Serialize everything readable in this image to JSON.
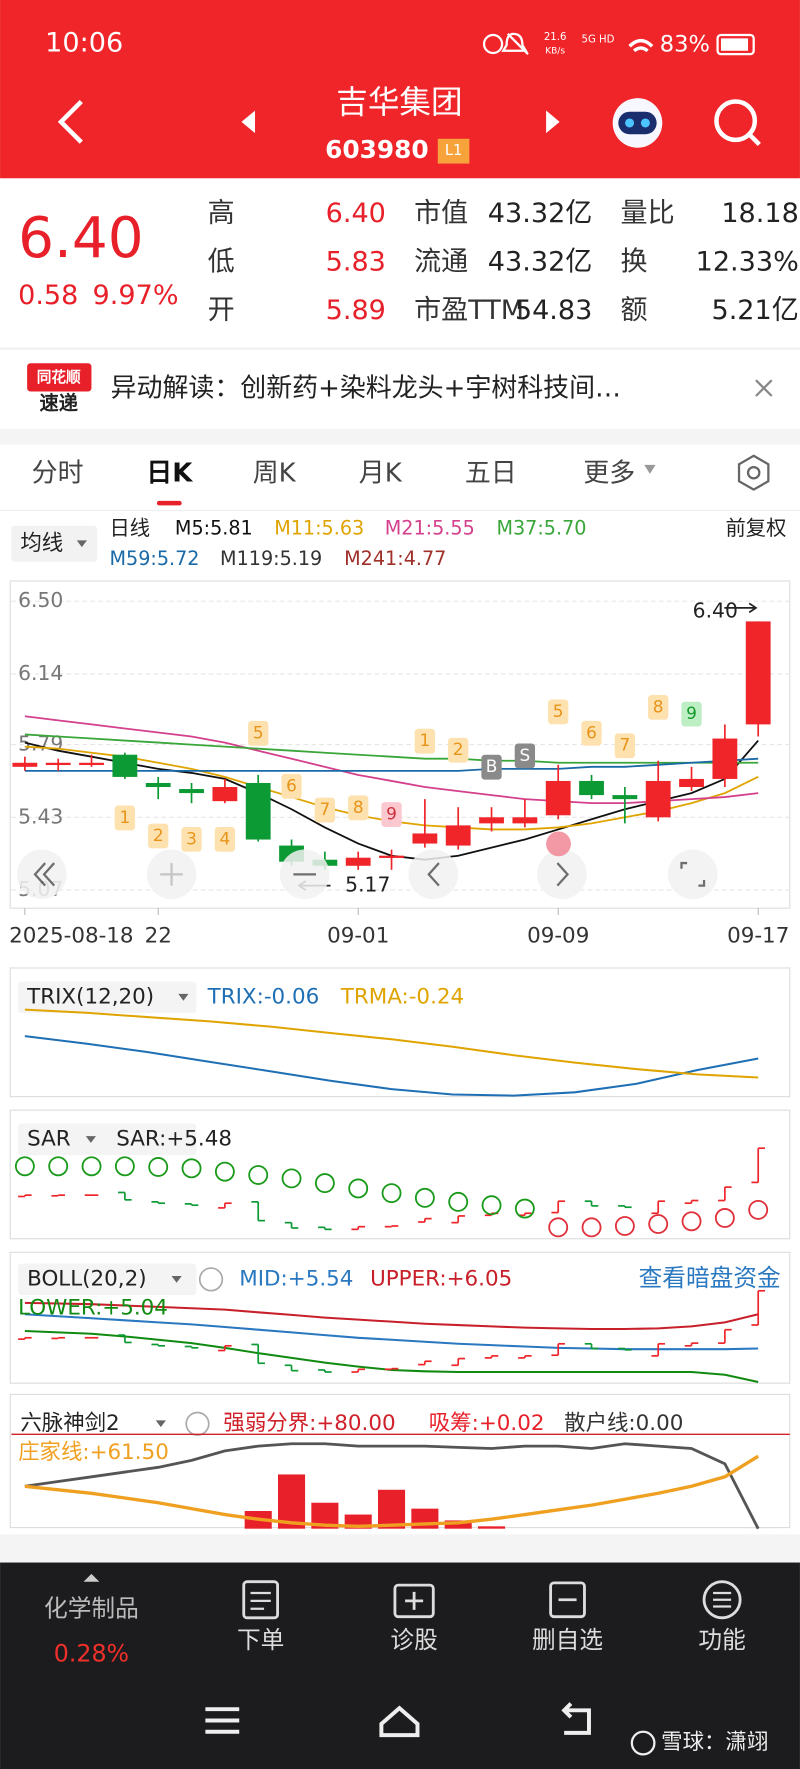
{
  "status_bar": {
    "time": "10:06",
    "net_speed": "21.6",
    "net_unit": "KB/s",
    "signal": "5G HD",
    "battery": "83%"
  },
  "header": {
    "title": "吉华集团",
    "code": "603980",
    "level": "L1"
  },
  "quote": {
    "price": "6.40",
    "change": "0.58",
    "change_pct": "9.97%",
    "fields": [
      {
        "label": "高",
        "value": "6.40"
      },
      {
        "label": "低",
        "value": "5.83"
      },
      {
        "label": "开",
        "value": "5.89"
      },
      {
        "label": "市值",
        "value": "43.32亿"
      },
      {
        "label": "流通",
        "value": "43.32亿"
      },
      {
        "label": "市盈TTM",
        "value": "54.83"
      },
      {
        "label": "量比",
        "value": "18.18"
      },
      {
        "label": "换",
        "value": "12.33%"
      },
      {
        "label": "额",
        "value": "5.21亿"
      }
    ]
  },
  "news": {
    "brand_top": "同花顺",
    "brand_bottom": "速递",
    "text": "异动解读：创新药+染料龙头+宇树科技间…"
  },
  "tabs": [
    "分时",
    "日K",
    "周K",
    "月K",
    "五日",
    "更多"
  ],
  "chart_data": [
    {
      "type": "candlestick",
      "indicator_button": "均线",
      "period": "日线",
      "adjust": "前复权",
      "categories": [
        "2025-08-18",
        null,
        null,
        null,
        "22",
        null,
        null,
        null,
        null,
        null,
        "09-01",
        null,
        null,
        null,
        null,
        null,
        "09-09",
        null,
        null,
        null,
        null,
        null,
        "09-17"
      ],
      "open": [
        5.68,
        5.69,
        5.7,
        5.74,
        5.6,
        5.57,
        5.51,
        5.6,
        5.29,
        5.22,
        5.19,
        5.23,
        5.3,
        5.29,
        5.4,
        5.4,
        5.44,
        5.61,
        5.54,
        5.43,
        5.58,
        5.62,
        5.89
      ],
      "high": [
        5.73,
        5.72,
        5.74,
        5.75,
        5.63,
        5.6,
        5.62,
        5.64,
        5.32,
        5.26,
        5.26,
        5.27,
        5.52,
        5.48,
        5.48,
        5.52,
        5.69,
        5.64,
        5.58,
        5.71,
        5.68,
        5.89,
        6.4
      ],
      "low": [
        5.66,
        5.66,
        5.68,
        5.62,
        5.52,
        5.5,
        5.5,
        5.31,
        5.19,
        5.17,
        5.17,
        5.17,
        5.28,
        5.27,
        5.36,
        5.38,
        5.42,
        5.52,
        5.4,
        5.41,
        5.56,
        5.58,
        5.83
      ],
      "close": [
        5.7,
        5.7,
        5.7,
        5.63,
        5.58,
        5.55,
        5.58,
        5.32,
        5.21,
        5.19,
        5.23,
        5.24,
        5.35,
        5.39,
        5.43,
        5.43,
        5.61,
        5.54,
        5.52,
        5.61,
        5.62,
        5.82,
        6.4
      ],
      "up_color": "#f0252a",
      "down_color": "#0c9a35",
      "series": [
        {
          "name": "M5:5.81",
          "color": "#111111",
          "values": [
            5.8,
            5.76,
            5.73,
            5.7,
            5.67,
            5.65,
            5.62,
            5.55,
            5.47,
            5.38,
            5.3,
            5.24,
            5.22,
            5.24,
            5.28,
            5.32,
            5.37,
            5.42,
            5.47,
            5.51,
            5.55,
            5.62,
            5.81
          ]
        },
        {
          "name": "M11:5.63",
          "color": "#e0a400",
          "values": [
            5.78,
            5.77,
            5.75,
            5.73,
            5.7,
            5.67,
            5.63,
            5.58,
            5.53,
            5.48,
            5.44,
            5.41,
            5.39,
            5.38,
            5.37,
            5.37,
            5.38,
            5.4,
            5.43,
            5.46,
            5.5,
            5.55,
            5.63
          ]
        },
        {
          "name": "M21:5.55",
          "color": "#d4408c",
          "values": [
            5.93,
            5.91,
            5.89,
            5.87,
            5.85,
            5.83,
            5.8,
            5.76,
            5.72,
            5.68,
            5.64,
            5.61,
            5.58,
            5.56,
            5.54,
            5.52,
            5.51,
            5.5,
            5.5,
            5.51,
            5.52,
            5.53,
            5.55
          ]
        },
        {
          "name": "M37:5.70",
          "color": "#3aa63a",
          "values": [
            5.84,
            5.83,
            5.82,
            5.81,
            5.8,
            5.79,
            5.78,
            5.77,
            5.76,
            5.75,
            5.74,
            5.73,
            5.72,
            5.72,
            5.71,
            5.71,
            5.7,
            5.7,
            5.7,
            5.7,
            5.7,
            5.7,
            5.7
          ]
        },
        {
          "name": "M59:5.72",
          "color": "#1a6aa8",
          "values": [
            5.66,
            5.66,
            5.66,
            5.66,
            5.66,
            5.66,
            5.66,
            5.66,
            5.66,
            5.66,
            5.66,
            5.66,
            5.66,
            5.66,
            5.67,
            5.67,
            5.67,
            5.68,
            5.68,
            5.69,
            5.7,
            5.71,
            5.72
          ]
        },
        {
          "name": "M119:5.19",
          "color": "#333333"
        },
        {
          "name": "M241:4.77",
          "color": "#a0302a"
        }
      ],
      "ylim": [
        4.98,
        6.6
      ],
      "yticks": [
        {
          "value": 6.5,
          "label": "6.50"
        },
        6.14,
        5.79,
        5.43,
        5.07
      ],
      "high_label": "6.40",
      "low_label": "5.17",
      "markers": [
        "1",
        "2",
        "3",
        "4",
        "5",
        "6",
        "7",
        "8",
        "9",
        "1",
        "2",
        "B",
        "S",
        "5",
        "6",
        "7",
        "8",
        "9"
      ]
    },
    {
      "type": "line",
      "indicator": "TRIX(12,20)",
      "series": [
        {
          "name": "TRIX:-0.06",
          "color": "#1f6fb5",
          "values": [
            0.15,
            0.08,
            0.0,
            -0.09,
            -0.18,
            -0.27,
            -0.35,
            -0.4,
            -0.41,
            -0.38,
            -0.3,
            -0.17,
            -0.06
          ]
        },
        {
          "name": "TRMA:-0.24",
          "color": "#e0a400",
          "values": [
            0.4,
            0.37,
            0.33,
            0.29,
            0.24,
            0.18,
            0.12,
            0.05,
            -0.03,
            -0.1,
            -0.16,
            -0.21,
            -0.24
          ]
        }
      ],
      "ylim": [
        -0.42,
        0.75
      ]
    },
    {
      "type": "sar",
      "indicator": "SAR",
      "series": [
        {
          "name": "SAR:+5.48",
          "color": "#1a9a1a",
          "values": [
            6.13,
            6.13,
            6.13,
            6.13,
            6.12,
            6.1,
            6.05,
            6.0,
            5.95,
            5.88,
            5.8,
            5.73,
            5.66,
            5.6,
            5.55,
            5.5,
            5.22,
            5.22,
            5.24,
            5.27,
            5.31,
            5.36,
            5.48
          ]
        }
      ],
      "below_color": "#e0303a",
      "ylim": [
        5.05,
        6.9
      ]
    },
    {
      "type": "boll",
      "indicator": "BOLL(20,2)",
      "link": "查看暗盘资金",
      "series": [
        {
          "name": "MID:+5.54",
          "color": "#2a78c0",
          "values": [
            6.05,
            6.02,
            5.99,
            5.96,
            5.93,
            5.9,
            5.86,
            5.82,
            5.78,
            5.74,
            5.7,
            5.67,
            5.64,
            5.61,
            5.59,
            5.57,
            5.55,
            5.54,
            5.53,
            5.53,
            5.53,
            5.53,
            5.54
          ]
        },
        {
          "name": "UPPER:+6.05",
          "color": "#c8202a",
          "values": [
            6.22,
            6.21,
            6.2,
            6.18,
            6.16,
            6.14,
            6.12,
            6.08,
            6.04,
            6.0,
            5.97,
            5.94,
            5.91,
            5.89,
            5.87,
            5.85,
            5.84,
            5.83,
            5.83,
            5.84,
            5.87,
            5.93,
            6.05
          ]
        },
        {
          "name": "LOWER:+5.04",
          "color": "#108a10",
          "values": [
            5.8,
            5.78,
            5.76,
            5.72,
            5.67,
            5.62,
            5.55,
            5.47,
            5.4,
            5.33,
            5.27,
            5.22,
            5.2,
            5.19,
            5.19,
            5.19,
            5.19,
            5.19,
            5.19,
            5.19,
            5.19,
            5.15,
            5.04
          ]
        }
      ],
      "ylim": [
        4.99,
        6.94
      ]
    },
    {
      "type": "liumai",
      "indicator": "六脉神剑2",
      "series": [
        {
          "name": "强弱分界:+80.00",
          "color": "#d0202a",
          "style": "hline",
          "values": [
            80
          ]
        },
        {
          "name": "吸筹:+0.02",
          "color": "#e8202a",
          "style": "bar",
          "values": [
            0,
            0,
            0,
            0,
            0,
            0,
            0,
            15,
            46,
            22,
            12,
            33,
            17,
            7,
            2,
            0,
            0,
            0,
            0,
            0,
            0,
            0,
            0.02
          ]
        },
        {
          "name": "散户线:0.00",
          "color": "#555555",
          "style": "line",
          "values": [
            36,
            40,
            44,
            48,
            52,
            58,
            66,
            70,
            72,
            72,
            70,
            70,
            70,
            69,
            68,
            70,
            70,
            68,
            72,
            70,
            68,
            55,
            0
          ]
        },
        {
          "name": "庄家线:+61.50",
          "color": "#f0a020",
          "style": "line",
          "values": [
            36,
            33,
            30,
            26,
            22,
            17,
            12,
            8,
            5,
            3,
            2,
            3,
            4,
            5,
            8,
            12,
            16,
            20,
            25,
            30,
            36,
            44,
            61.5
          ]
        }
      ],
      "ylim": [
        0,
        110
      ]
    }
  ],
  "bottom_bar": {
    "sector": "化学制品",
    "sector_change": "0.28%",
    "actions": [
      "下单",
      "诊股",
      "删自选",
      "功能"
    ]
  },
  "watermark": "雪球：潇翊"
}
